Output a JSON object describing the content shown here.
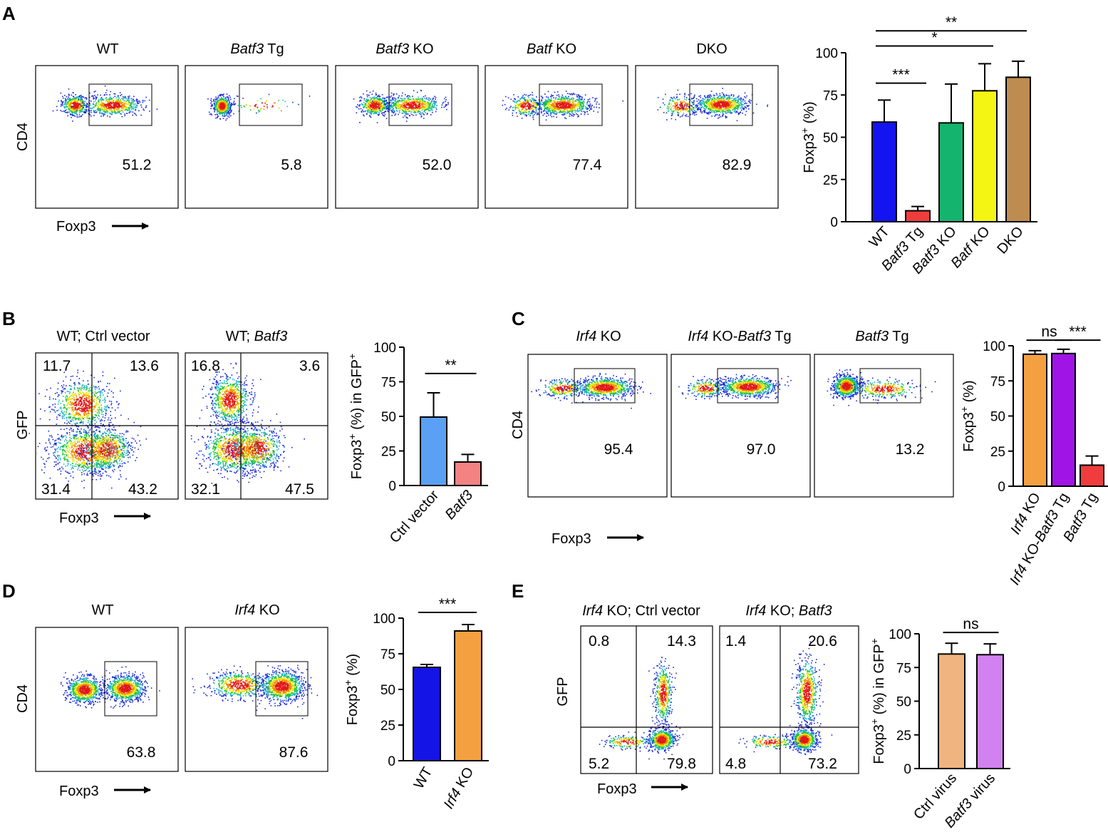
{
  "figure_labels": {
    "A": "A",
    "B": "B",
    "C": "C",
    "D": "D",
    "E": "E"
  },
  "panels": {
    "A": {
      "flow": {
        "y_label": "CD4",
        "x_label": "Foxp3",
        "plots": [
          {
            "title_plain": "WT",
            "title_italic": "",
            "value": "51.2"
          },
          {
            "title_plain": " Tg",
            "title_italic": "Batf3",
            "value": "5.8"
          },
          {
            "title_plain": " KO",
            "title_italic": "Batf3",
            "value": "52.0"
          },
          {
            "title_plain": " KO",
            "title_italic": "Batf",
            "value": "77.4"
          },
          {
            "title_plain": "DKO",
            "title_italic": "",
            "value": "82.9"
          }
        ]
      }
    },
    "B": {
      "flow": {
        "y_label": "GFP",
        "x_label": "Foxp3",
        "plots": [
          {
            "title_plain": "WT; Ctrl vector",
            "title_italic": "",
            "quadrants": {
              "ul": "11.7",
              "ur": "13.6",
              "ll": "31.4",
              "lr": "43.2"
            }
          },
          {
            "title_plain": "WT; ",
            "title_italic": "Batf3",
            "quadrants": {
              "ul": "16.8",
              "ur": "3.6",
              "ll": "32.1",
              "lr": "47.5"
            }
          }
        ]
      }
    },
    "C": {
      "flow": {
        "y_label": "CD4",
        "x_label": "Foxp3",
        "plots": [
          {
            "title_italic": "Irf4",
            "title_plain": " KO",
            "title_italic2": "",
            "title_plain2": "",
            "value": "95.4"
          },
          {
            "title_italic": "Irf4",
            "title_plain": " KO-",
            "title_italic2": "Batf3",
            "title_plain2": " Tg",
            "value": "97.0"
          },
          {
            "title_italic": "Batf3",
            "title_plain": " Tg",
            "title_italic2": "",
            "title_plain2": "",
            "value": "13.2"
          }
        ]
      }
    },
    "D": {
      "flow": {
        "y_label": "CD4",
        "x_label": "Foxp3",
        "plots": [
          {
            "title_plain": "WT",
            "title_italic": "",
            "value": "63.8"
          },
          {
            "title_plain": " KO",
            "title_italic": "Irf4",
            "value": "87.6"
          }
        ]
      }
    },
    "E": {
      "flow": {
        "y_label": "GFP",
        "x_label": "Foxp3",
        "plots": [
          {
            "title_italic": "Irf4",
            "title_plain": " KO; Ctrl vector",
            "title_italic2": "",
            "quadrants": {
              "ul": "0.8",
              "ur": "14.3",
              "ll": "5.2",
              "lr": "79.8"
            }
          },
          {
            "title_italic": "Irf4",
            "title_plain": " KO; ",
            "title_italic2": "Batf3",
            "quadrants": {
              "ul": "1.4",
              "ur": "20.6",
              "ll": "4.8",
              "lr": "73.2"
            }
          }
        ]
      }
    }
  },
  "chart_data": [
    {
      "id": "A",
      "type": "bar",
      "ylabel": "Foxp3+ (%)",
      "ylabel_main": "Foxp3",
      "ylabel_sup": "+",
      "ylabel_rest": " (%)",
      "ylim": [
        0,
        100
      ],
      "yticks": [
        0,
        25,
        50,
        75,
        100
      ],
      "categories": [
        {
          "label": "WT",
          "parts": [
            {
              "t": "WT",
              "i": false
            }
          ],
          "color": "#1414f0",
          "value": 59,
          "error": 13
        },
        {
          "label": "Batf3 Tg",
          "parts": [
            {
              "t": "Batf3",
              "i": true
            },
            {
              "t": " Tg",
              "i": false
            }
          ],
          "color": "#f03c3c",
          "value": 6.5,
          "error": 2.5
        },
        {
          "label": "Batf3 KO",
          "parts": [
            {
              "t": "Batf3",
              "i": true
            },
            {
              "t": " KO",
              "i": false
            }
          ],
          "color": "#14b46e",
          "value": 58.5,
          "error": 23
        },
        {
          "label": "Batf KO",
          "parts": [
            {
              "t": "Batf",
              "i": true
            },
            {
              "t": " KO",
              "i": false
            }
          ],
          "color": "#f5f514",
          "value": 77.5,
          "error": 16
        },
        {
          "label": "DKO",
          "parts": [
            {
              "t": "DKO",
              "i": false
            }
          ],
          "color": "#be8c50",
          "value": 85.5,
          "error": 9.5
        }
      ],
      "significance": [
        {
          "from": 0,
          "to": 1,
          "label": "***",
          "level": 82
        },
        {
          "from": 0,
          "to": 3,
          "label": "*",
          "level": 104
        },
        {
          "from": 0,
          "to": 4,
          "label": "**",
          "level": 113
        }
      ]
    },
    {
      "id": "B",
      "type": "bar",
      "ylabel": "Foxp3+ (%) in GFP+",
      "ylabel_main": "Foxp3",
      "ylabel_sup": "+",
      "ylabel_rest": " (%) in GFP",
      "ylabel_sup2": "+",
      "ylim": [
        0,
        100
      ],
      "yticks": [
        0,
        25,
        50,
        75,
        100
      ],
      "categories": [
        {
          "label": "Ctrl vector",
          "parts": [
            {
              "t": "Ctrl vector",
              "i": false
            }
          ],
          "color": "#5aa0f5",
          "value": 49.5,
          "error": 17.5
        },
        {
          "label": "Batf3",
          "parts": [
            {
              "t": "Batf3",
              "i": true
            }
          ],
          "color": "#f58282",
          "value": 17,
          "error": 5.5
        }
      ],
      "significance": [
        {
          "from": 0,
          "to": 1,
          "label": "**",
          "level": 81
        }
      ]
    },
    {
      "id": "C",
      "type": "bar",
      "ylabel": "Foxp3+ (%)",
      "ylabel_main": "Foxp3",
      "ylabel_sup": "+",
      "ylabel_rest": " (%)",
      "ylim": [
        0,
        100
      ],
      "yticks": [
        0,
        25,
        50,
        75,
        100
      ],
      "categories": [
        {
          "label": "Irf4 KO",
          "parts": [
            {
              "t": "Irf4",
              "i": true
            },
            {
              "t": " KO",
              "i": false
            }
          ],
          "color": "#f5a040",
          "value": 94,
          "error": 2.5
        },
        {
          "label": "Irf4 KO-Batf3 Tg",
          "parts": [
            {
              "t": "Irf4",
              "i": true
            },
            {
              "t": " KO-",
              "i": false
            },
            {
              "t": "Batf3",
              "i": true
            },
            {
              "t": " Tg",
              "i": false
            }
          ],
          "color": "#a014e6",
          "value": 94.5,
          "error": 3
        },
        {
          "label": "Batf3 Tg",
          "parts": [
            {
              "t": "Batf3",
              "i": true
            },
            {
              "t": " Tg",
              "i": false
            }
          ],
          "color": "#f03c3c",
          "value": 15,
          "error": 6.5
        }
      ],
      "significance": [
        {
          "from": 0,
          "to": 1,
          "label": "ns",
          "level": 104
        },
        {
          "from": 1,
          "to": 2,
          "label": "***",
          "level": 104
        }
      ]
    },
    {
      "id": "D",
      "type": "bar",
      "ylabel": "Foxp3+ (%)",
      "ylabel_main": "Foxp3",
      "ylabel_sup": "+",
      "ylabel_rest": " (%)",
      "ylim": [
        0,
        100
      ],
      "yticks": [
        0,
        25,
        50,
        75,
        100
      ],
      "categories": [
        {
          "label": "WT",
          "parts": [
            {
              "t": "WT",
              "i": false
            }
          ],
          "color": "#1414e6",
          "value": 65.5,
          "error": 2
        },
        {
          "label": "Irf4 KO",
          "parts": [
            {
              "t": "Irf4",
              "i": true
            },
            {
              "t": " KO",
              "i": false
            }
          ],
          "color": "#f5a040",
          "value": 91,
          "error": 4.5
        }
      ],
      "significance": [
        {
          "from": 0,
          "to": 1,
          "label": "***",
          "level": 104
        }
      ]
    },
    {
      "id": "E",
      "type": "bar",
      "ylabel": "Foxp3+ (%) in GFP+",
      "ylabel_main": "Foxp3",
      "ylabel_sup": "+",
      "ylabel_rest": " (%) in GFP",
      "ylabel_sup2": "+",
      "ylim": [
        0,
        100
      ],
      "yticks": [
        0,
        25,
        50,
        75,
        100
      ],
      "categories": [
        {
          "label": "Ctrl virus",
          "parts": [
            {
              "t": "Ctrl virus",
              "i": false
            }
          ],
          "color": "#f0b480",
          "value": 85,
          "error": 8
        },
        {
          "label": "Batf3 virus",
          "parts": [
            {
              "t": "Batf3",
              "i": true
            },
            {
              "t": " virus",
              "i": false
            }
          ],
          "color": "#d282f0",
          "value": 84.5,
          "error": 8
        }
      ],
      "significance": [
        {
          "from": 0,
          "to": 1,
          "label": "ns",
          "level": 101
        }
      ]
    }
  ]
}
